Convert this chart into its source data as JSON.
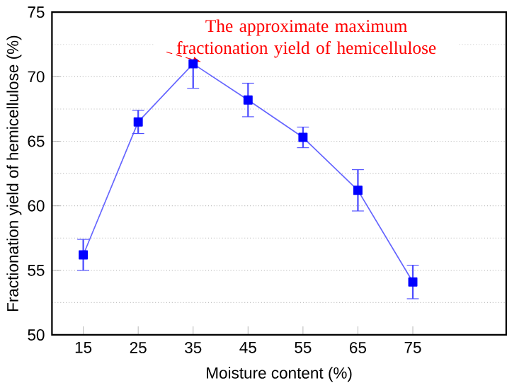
{
  "chart_data": {
    "type": "line",
    "xlabel": "Moisture content (%)",
    "ylabel": "Fractionation yield of hemicellulose (%)",
    "x": [
      15,
      25,
      35,
      45,
      55,
      65,
      75
    ],
    "series": [
      {
        "color": "#0000ff",
        "values": [
          56.2,
          66.5,
          71.0,
          68.2,
          65.3,
          61.2,
          54.1
        ],
        "errors": [
          1.2,
          0.9,
          1.9,
          1.3,
          0.8,
          1.6,
          1.3
        ]
      }
    ],
    "xlim": [
      9.3,
      92
    ],
    "ylim": [
      50,
      75
    ],
    "xticks": [
      15,
      25,
      35,
      45,
      55,
      65,
      75
    ],
    "yticks": [
      50,
      55,
      60,
      65,
      70,
      75
    ],
    "grid": "y",
    "marker": "square",
    "line_style": "solid",
    "annotations": [
      {
        "text": "The approximate maximum fractionation yield of hemicellulose",
        "x": 35,
        "y": 71.0
      }
    ]
  }
}
